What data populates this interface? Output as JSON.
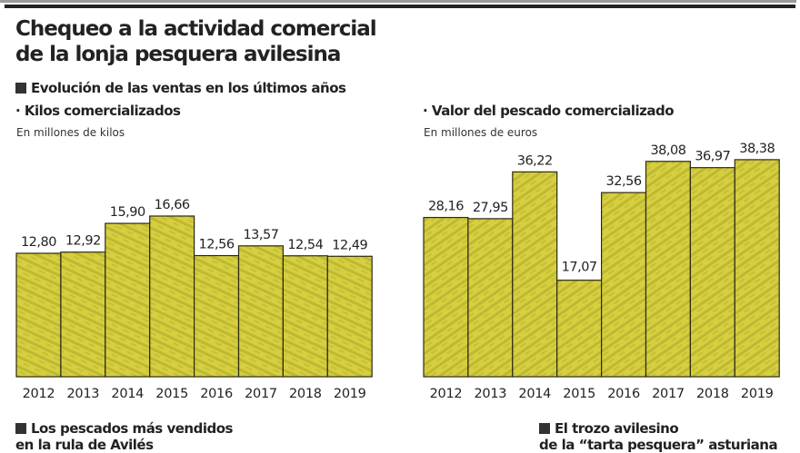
{
  "header": {
    "title_line1": "Chequeo a la actividad comercial",
    "title_line2": "de la lonja pesquera avilesina",
    "section": "Evolución de las ventas en los últimos años"
  },
  "colors": {
    "bar_fill": "#d6cf3e",
    "bar_texture": "#a39c2a",
    "bar_stroke": "#2b2b14",
    "label_bg": "#ffffff"
  },
  "chart_data": [
    {
      "type": "bar",
      "title": "· Kilos comercializados",
      "subtitle": "En millones de kilos",
      "xlabel": "",
      "ylabel": "",
      "categories": [
        "2012",
        "2013",
        "2014",
        "2015",
        "2016",
        "2017",
        "2018",
        "2019"
      ],
      "values": [
        12.8,
        12.92,
        15.9,
        16.66,
        12.56,
        13.57,
        12.54,
        12.49
      ],
      "labels": [
        "12,80",
        "12,92",
        "15,90",
        "16,66",
        "12,56",
        "13,57",
        "12,54",
        "12,49"
      ],
      "ylim": [
        0,
        30
      ],
      "grid": false
    },
    {
      "type": "bar",
      "title": "· Valor del pescado comercializado",
      "subtitle": "En millones de euros",
      "xlabel": "",
      "ylabel": "",
      "categories": [
        "2012",
        "2013",
        "2014",
        "2015",
        "2016",
        "2017",
        "2018",
        "2019"
      ],
      "values": [
        28.16,
        27.95,
        36.22,
        17.07,
        32.56,
        38.08,
        36.97,
        38.38
      ],
      "labels": [
        "28,16",
        "27,95",
        "36,22",
        "17,07",
        "32,56",
        "38,08",
        "36,97",
        "38,38"
      ],
      "ylim": [
        0,
        40
      ],
      "grid": false
    }
  ],
  "footer": {
    "left_heading_line1": "Los pescados más vendidos",
    "left_heading_line2": "en la rula de Avilés",
    "right_heading_line1": "El trozo avilesino",
    "right_heading_line2": "de la “tarta pesquera” asturiana"
  }
}
